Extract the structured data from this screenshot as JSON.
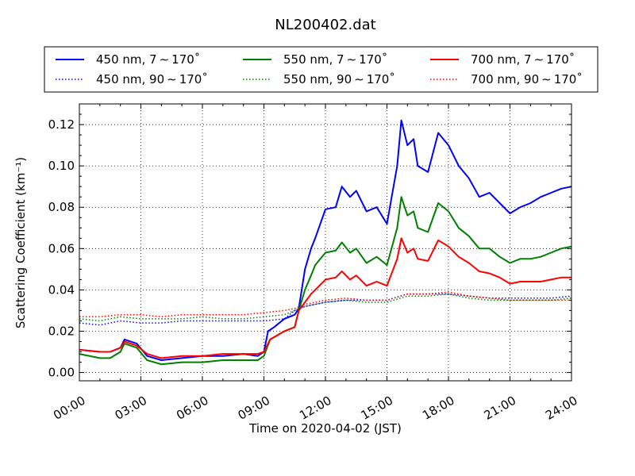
{
  "chart_data": {
    "type": "line",
    "title": "NL200402.dat",
    "xlabel": "Time on 2020-04-02 (JST)",
    "ylabel": "Scattering Coefficient (km⁻¹)",
    "xlim": [
      0,
      24
    ],
    "ylim": [
      -0.004,
      0.13
    ],
    "x_ticks": [
      0,
      3,
      6,
      9,
      12,
      15,
      18,
      21,
      24
    ],
    "x_tick_labels": [
      "00:00",
      "03:00",
      "06:00",
      "09:00",
      "12:00",
      "15:00",
      "18:00",
      "21:00",
      "24:00"
    ],
    "y_ticks": [
      0.0,
      0.02,
      0.04,
      0.06,
      0.08,
      0.1,
      0.12
    ],
    "y_tick_labels": [
      "0.00",
      "0.02",
      "0.04",
      "0.06",
      "0.08",
      "0.10",
      "0.12"
    ],
    "grid": true,
    "legend_placement": "top, above plot, 3 columns",
    "series": [
      {
        "name": "450 nm, 7 ∼ 170˚",
        "color": "#0000ff",
        "style": "solid",
        "x": [
          0,
          1,
          1.5,
          2,
          2.2,
          2.8,
          3.3,
          4,
          5,
          6,
          7,
          8,
          8.7,
          9,
          9.2,
          9.5,
          10,
          10.5,
          10.7,
          11,
          11.3,
          11.5,
          12,
          12.5,
          12.8,
          13.2,
          13.5,
          14,
          14.5,
          15,
          15.5,
          15.7,
          16,
          16.3,
          16.5,
          17,
          17.5,
          18,
          18.5,
          19,
          19.5,
          20,
          20.5,
          21,
          21.5,
          22,
          22.5,
          23,
          23.5,
          24
        ],
        "y": [
          0.011,
          0.01,
          0.01,
          0.012,
          0.016,
          0.014,
          0.008,
          0.006,
          0.007,
          0.008,
          0.008,
          0.009,
          0.008,
          0.01,
          0.02,
          0.022,
          0.026,
          0.028,
          0.031,
          0.05,
          0.06,
          0.065,
          0.079,
          0.08,
          0.09,
          0.085,
          0.088,
          0.078,
          0.08,
          0.072,
          0.1,
          0.122,
          0.11,
          0.113,
          0.1,
          0.097,
          0.116,
          0.11,
          0.1,
          0.094,
          0.085,
          0.087,
          0.082,
          0.077,
          0.08,
          0.082,
          0.085,
          0.087,
          0.089,
          0.09
        ]
      },
      {
        "name": "450 nm, 90 ∼ 170˚",
        "color": "#0000ff",
        "style": "dotted",
        "x": [
          0,
          1,
          2,
          3,
          4,
          5,
          6,
          7,
          8,
          9,
          10,
          10.5,
          11,
          12,
          13,
          14,
          15,
          16,
          17,
          18,
          19,
          20,
          21,
          22,
          23,
          24
        ],
        "y": [
          0.024,
          0.023,
          0.025,
          0.024,
          0.024,
          0.025,
          0.025,
          0.025,
          0.025,
          0.025,
          0.026,
          0.03,
          0.032,
          0.034,
          0.035,
          0.035,
          0.035,
          0.038,
          0.038,
          0.038,
          0.037,
          0.036,
          0.036,
          0.036,
          0.036,
          0.037
        ]
      },
      {
        "name": "550 nm, 7 ∼ 170˚",
        "color": "#008000",
        "style": "solid",
        "x": [
          0,
          1,
          1.5,
          2,
          2.2,
          2.8,
          3.3,
          4,
          5,
          6,
          7,
          8,
          8.7,
          9,
          9.3,
          10,
          10.5,
          10.7,
          11,
          11.3,
          11.5,
          12,
          12.5,
          12.8,
          13.2,
          13.5,
          14,
          14.5,
          15,
          15.5,
          15.7,
          16,
          16.3,
          16.5,
          17,
          17.5,
          18,
          18.5,
          19,
          19.5,
          20,
          20.5,
          21,
          21.5,
          22,
          22.5,
          23,
          23.5,
          24
        ],
        "y": [
          0.009,
          0.007,
          0.007,
          0.01,
          0.014,
          0.012,
          0.006,
          0.004,
          0.005,
          0.005,
          0.006,
          0.006,
          0.006,
          0.008,
          0.016,
          0.02,
          0.022,
          0.03,
          0.04,
          0.047,
          0.052,
          0.058,
          0.059,
          0.063,
          0.058,
          0.06,
          0.053,
          0.056,
          0.052,
          0.07,
          0.085,
          0.076,
          0.078,
          0.07,
          0.068,
          0.082,
          0.078,
          0.07,
          0.066,
          0.06,
          0.06,
          0.056,
          0.053,
          0.055,
          0.055,
          0.056,
          0.058,
          0.06,
          0.061
        ]
      },
      {
        "name": "550 nm, 90 ∼ 170˚",
        "color": "#008000",
        "style": "dotted",
        "x": [
          0,
          1,
          2,
          3,
          4,
          5,
          6,
          7,
          8,
          9,
          10,
          10.5,
          11,
          12,
          13,
          14,
          15,
          16,
          17,
          18,
          19,
          20,
          21,
          22,
          23,
          24
        ],
        "y": [
          0.026,
          0.025,
          0.027,
          0.026,
          0.026,
          0.026,
          0.027,
          0.026,
          0.026,
          0.027,
          0.028,
          0.03,
          0.032,
          0.034,
          0.035,
          0.034,
          0.034,
          0.037,
          0.037,
          0.038,
          0.036,
          0.035,
          0.035,
          0.035,
          0.035,
          0.036
        ]
      },
      {
        "name": "700 nm, 7 ∼ 170˚",
        "color": "#ff0000",
        "style": "solid",
        "x": [
          0,
          1,
          1.5,
          2,
          2.2,
          2.8,
          3.3,
          4,
          5,
          6,
          7,
          8,
          8.7,
          9,
          9.3,
          10,
          10.5,
          10.7,
          11,
          11.3,
          11.5,
          12,
          12.5,
          12.8,
          13.2,
          13.5,
          14,
          14.5,
          15,
          15.5,
          15.7,
          16,
          16.3,
          16.5,
          17,
          17.5,
          18,
          18.5,
          19,
          19.5,
          20,
          20.5,
          21,
          21.5,
          22,
          22.5,
          23,
          23.5,
          24
        ],
        "y": [
          0.011,
          0.01,
          0.01,
          0.012,
          0.015,
          0.013,
          0.009,
          0.007,
          0.008,
          0.008,
          0.009,
          0.009,
          0.009,
          0.01,
          0.016,
          0.02,
          0.022,
          0.03,
          0.034,
          0.038,
          0.04,
          0.045,
          0.046,
          0.049,
          0.045,
          0.047,
          0.042,
          0.044,
          0.042,
          0.055,
          0.065,
          0.058,
          0.06,
          0.055,
          0.054,
          0.064,
          0.061,
          0.056,
          0.053,
          0.049,
          0.048,
          0.046,
          0.043,
          0.044,
          0.044,
          0.044,
          0.045,
          0.046,
          0.046
        ]
      },
      {
        "name": "700 nm, 90 ∼ 170˚",
        "color": "#ff0000",
        "style": "dotted",
        "x": [
          0,
          1,
          2,
          3,
          4,
          5,
          6,
          7,
          8,
          9,
          10,
          10.5,
          11,
          12,
          13,
          14,
          15,
          16,
          17,
          18,
          19,
          20,
          21,
          22,
          23,
          24
        ],
        "y": [
          0.027,
          0.027,
          0.028,
          0.028,
          0.027,
          0.028,
          0.028,
          0.028,
          0.028,
          0.029,
          0.03,
          0.031,
          0.033,
          0.035,
          0.036,
          0.035,
          0.035,
          0.038,
          0.038,
          0.039,
          0.037,
          0.036,
          0.035,
          0.035,
          0.035,
          0.035
        ]
      }
    ]
  }
}
